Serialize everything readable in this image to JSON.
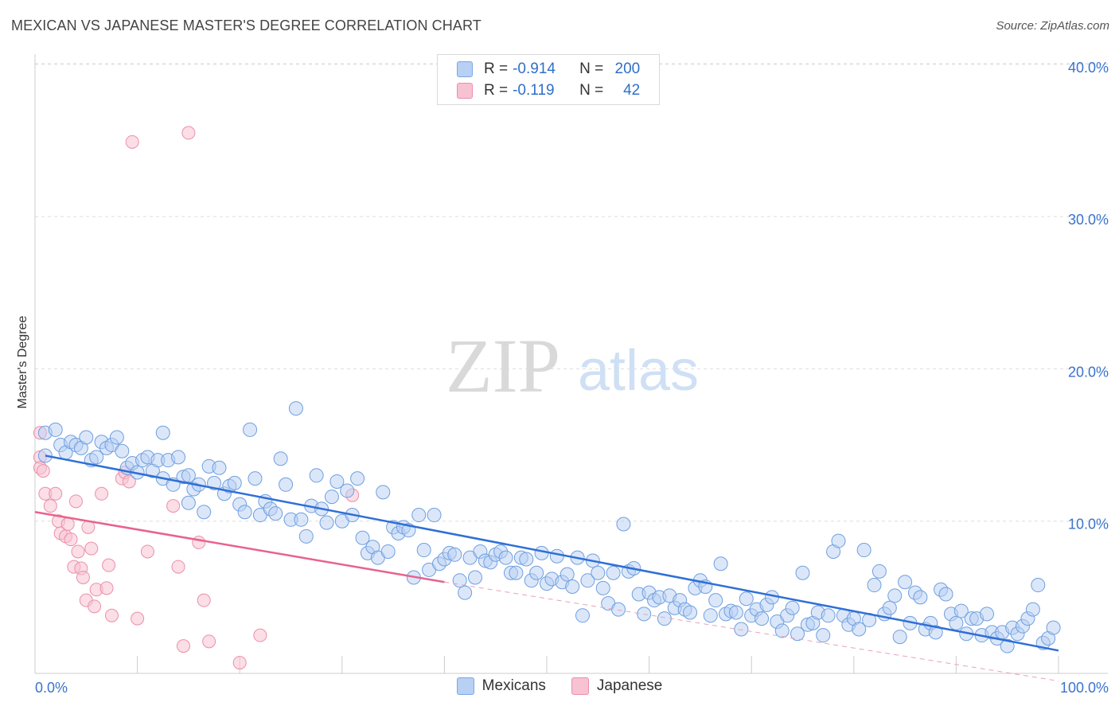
{
  "title": "MEXICAN VS JAPANESE MASTER'S DEGREE CORRELATION CHART",
  "source": "Source: ZipAtlas.com",
  "watermark": {
    "zip": "ZIP",
    "atlas": "atlas"
  },
  "legend": [
    {
      "r_label": "R =",
      "r_value": "-0.914",
      "n_label": "N =",
      "n_value": "200",
      "fill": "#b7d0f3",
      "stroke": "#7aa7e6"
    },
    {
      "r_label": "R =",
      "r_value": "-0.119",
      "n_label": "N =",
      "n_value": "42",
      "fill": "#f7c2d2",
      "stroke": "#eb8fab"
    }
  ],
  "bottom_legend": [
    {
      "label": "Mexicans",
      "fill": "#b7d0f3",
      "stroke": "#7aa7e6"
    },
    {
      "label": "Japanese",
      "fill": "#f7c2d2",
      "stroke": "#eb8fab"
    }
  ],
  "chart_data": {
    "type": "scatter",
    "title": "MEXICAN VS JAPANESE MASTER'S DEGREE CORRELATION CHART",
    "xlabel": "",
    "ylabel": "Master's Degree",
    "xlim": [
      0,
      100
    ],
    "ylim": [
      0,
      42
    ],
    "x_tick_labels": [
      "0.0%",
      "100.0%"
    ],
    "y_ticks": [
      10,
      20,
      30,
      40
    ],
    "y_tick_labels": [
      "10.0%",
      "20.0%",
      "30.0%",
      "40.0%"
    ],
    "grid": true,
    "legend_position": "top-center",
    "colors": {
      "mexicans": "#2f6fd6",
      "japanese": "#e8628e",
      "axis_text": "#3a74cc"
    },
    "series": [
      {
        "name": "Mexicans",
        "r": -0.914,
        "n": 200,
        "trend": {
          "x0": 1,
          "y0": 14.3,
          "x1": 100,
          "y1": 1.5
        },
        "points": [
          [
            1,
            14.3
          ],
          [
            1,
            15.8
          ],
          [
            2,
            16.0
          ],
          [
            2.5,
            15.0
          ],
          [
            3,
            14.5
          ],
          [
            3.5,
            15.2
          ],
          [
            4,
            15.0
          ],
          [
            4.5,
            14.8
          ],
          [
            5,
            15.5
          ],
          [
            5.5,
            14.0
          ],
          [
            6,
            14.2
          ],
          [
            6.5,
            15.2
          ],
          [
            7,
            14.8
          ],
          [
            7.5,
            15.0
          ],
          [
            8,
            15.5
          ],
          [
            8.5,
            14.6
          ],
          [
            9,
            13.5
          ],
          [
            9.5,
            13.8
          ],
          [
            10,
            13.2
          ],
          [
            10.5,
            14.0
          ],
          [
            11,
            14.2
          ],
          [
            11.5,
            13.3
          ],
          [
            12,
            14.0
          ],
          [
            12.5,
            12.8
          ],
          [
            12.5,
            15.8
          ],
          [
            13,
            14.0
          ],
          [
            13.5,
            12.4
          ],
          [
            14,
            14.2
          ],
          [
            14.5,
            12.9
          ],
          [
            15,
            11.2
          ],
          [
            15,
            13.0
          ],
          [
            15.5,
            12.1
          ],
          [
            16,
            12.4
          ],
          [
            16.5,
            10.6
          ],
          [
            17,
            13.6
          ],
          [
            17.5,
            12.5
          ],
          [
            18,
            13.5
          ],
          [
            18.5,
            11.8
          ],
          [
            19,
            12.3
          ],
          [
            19.5,
            12.5
          ],
          [
            20,
            11.1
          ],
          [
            20.5,
            10.6
          ],
          [
            21,
            16.0
          ],
          [
            21.5,
            12.8
          ],
          [
            22,
            10.4
          ],
          [
            22.5,
            11.3
          ],
          [
            23,
            10.8
          ],
          [
            23.5,
            10.5
          ],
          [
            24,
            14.1
          ],
          [
            24.5,
            12.4
          ],
          [
            25,
            10.1
          ],
          [
            25.5,
            17.4
          ],
          [
            26,
            10.1
          ],
          [
            26.5,
            9.0
          ],
          [
            27,
            11.0
          ],
          [
            27.5,
            13.0
          ],
          [
            28,
            10.8
          ],
          [
            28.5,
            9.9
          ],
          [
            29,
            11.6
          ],
          [
            29.5,
            12.6
          ],
          [
            30,
            10.0
          ],
          [
            30.5,
            12.0
          ],
          [
            31,
            10.4
          ],
          [
            31.5,
            12.8
          ],
          [
            32,
            8.9
          ],
          [
            32.5,
            7.9
          ],
          [
            33,
            8.3
          ],
          [
            33.5,
            7.6
          ],
          [
            34,
            11.9
          ],
          [
            34.5,
            8.0
          ],
          [
            35,
            9.6
          ],
          [
            35.5,
            9.2
          ],
          [
            36,
            9.6
          ],
          [
            36.5,
            9.4
          ],
          [
            37,
            6.3
          ],
          [
            37.5,
            10.4
          ],
          [
            38,
            8.1
          ],
          [
            38.5,
            6.8
          ],
          [
            39,
            10.4
          ],
          [
            39.5,
            7.2
          ],
          [
            40,
            7.5
          ],
          [
            40.5,
            7.9
          ],
          [
            41,
            7.8
          ],
          [
            41.5,
            6.1
          ],
          [
            42,
            5.3
          ],
          [
            42.5,
            7.6
          ],
          [
            43,
            6.3
          ],
          [
            43.5,
            8.0
          ],
          [
            44,
            7.4
          ],
          [
            44.5,
            7.3
          ],
          [
            45,
            7.8
          ],
          [
            45.5,
            8.0
          ],
          [
            46,
            7.6
          ],
          [
            46.5,
            6.6
          ],
          [
            47,
            6.6
          ],
          [
            47.5,
            7.6
          ],
          [
            48,
            7.5
          ],
          [
            48.5,
            6.1
          ],
          [
            49,
            6.6
          ],
          [
            49.5,
            7.9
          ],
          [
            50,
            5.9
          ],
          [
            50.5,
            6.2
          ],
          [
            51,
            7.7
          ],
          [
            51.5,
            6.0
          ],
          [
            52,
            6.5
          ],
          [
            52.5,
            5.7
          ],
          [
            53,
            7.6
          ],
          [
            53.5,
            3.8
          ],
          [
            54,
            6.1
          ],
          [
            54.5,
            7.4
          ],
          [
            55,
            6.6
          ],
          [
            55.5,
            5.6
          ],
          [
            56,
            4.6
          ],
          [
            56.5,
            6.6
          ],
          [
            57,
            4.2
          ],
          [
            57.5,
            9.8
          ],
          [
            58,
            6.7
          ],
          [
            58.5,
            6.9
          ],
          [
            59,
            5.2
          ],
          [
            59.5,
            3.9
          ],
          [
            60,
            5.3
          ],
          [
            60.5,
            4.8
          ],
          [
            61,
            5.0
          ],
          [
            61.5,
            3.6
          ],
          [
            62,
            5.1
          ],
          [
            62.5,
            4.3
          ],
          [
            63,
            4.8
          ],
          [
            63.5,
            4.2
          ],
          [
            64,
            4.0
          ],
          [
            64.5,
            5.6
          ],
          [
            65,
            6.1
          ],
          [
            65.5,
            5.7
          ],
          [
            66,
            3.8
          ],
          [
            66.5,
            4.8
          ],
          [
            67,
            7.2
          ],
          [
            67.5,
            3.9
          ],
          [
            68,
            4.1
          ],
          [
            68.5,
            4.0
          ],
          [
            69,
            2.9
          ],
          [
            69.5,
            4.9
          ],
          [
            70,
            3.8
          ],
          [
            70.5,
            4.2
          ],
          [
            71,
            3.6
          ],
          [
            71.5,
            4.5
          ],
          [
            72,
            5.0
          ],
          [
            72.5,
            3.4
          ],
          [
            73,
            2.8
          ],
          [
            73.5,
            3.8
          ],
          [
            74,
            4.3
          ],
          [
            74.5,
            2.6
          ],
          [
            75,
            6.6
          ],
          [
            75.5,
            3.2
          ],
          [
            76,
            3.3
          ],
          [
            76.5,
            4.0
          ],
          [
            77,
            2.5
          ],
          [
            77.5,
            3.8
          ],
          [
            78,
            8.0
          ],
          [
            78.5,
            8.7
          ],
          [
            79,
            3.8
          ],
          [
            79.5,
            3.2
          ],
          [
            80,
            3.6
          ],
          [
            80.5,
            2.9
          ],
          [
            81,
            8.1
          ],
          [
            81.5,
            3.5
          ],
          [
            82,
            5.8
          ],
          [
            82.5,
            6.7
          ],
          [
            83,
            3.9
          ],
          [
            83.5,
            4.3
          ],
          [
            84,
            5.1
          ],
          [
            84.5,
            2.4
          ],
          [
            85,
            6.0
          ],
          [
            85.5,
            3.3
          ],
          [
            86,
            5.3
          ],
          [
            86.5,
            5.0
          ],
          [
            87,
            2.9
          ],
          [
            87.5,
            3.3
          ],
          [
            88,
            2.7
          ],
          [
            88.5,
            5.5
          ],
          [
            89,
            5.2
          ],
          [
            89.5,
            3.9
          ],
          [
            90,
            3.3
          ],
          [
            90.5,
            4.1
          ],
          [
            91,
            2.6
          ],
          [
            91.5,
            3.6
          ],
          [
            92,
            3.6
          ],
          [
            92.5,
            2.5
          ],
          [
            93,
            3.9
          ],
          [
            93.5,
            2.7
          ],
          [
            94,
            2.3
          ],
          [
            94.5,
            2.7
          ],
          [
            95,
            1.8
          ],
          [
            95.5,
            3.0
          ],
          [
            96,
            2.6
          ],
          [
            96.5,
            3.1
          ],
          [
            97,
            3.6
          ],
          [
            97.5,
            4.2
          ],
          [
            98,
            5.8
          ],
          [
            98.5,
            2.0
          ],
          [
            99,
            2.3
          ],
          [
            99.5,
            3.0
          ]
        ]
      },
      {
        "name": "Japanese",
        "r": -0.119,
        "n": 42,
        "trend": {
          "x0": 0,
          "y0": 10.6,
          "x1": 40,
          "y1": 6.0
        },
        "trend_dashed_to": {
          "x": 100,
          "y": -0.5
        },
        "points": [
          [
            0.5,
            15.8
          ],
          [
            0.5,
            14.2
          ],
          [
            0.5,
            13.5
          ],
          [
            0.8,
            13.3
          ],
          [
            1,
            11.8
          ],
          [
            1.5,
            11.0
          ],
          [
            2,
            11.8
          ],
          [
            2.3,
            10.0
          ],
          [
            2.5,
            9.2
          ],
          [
            3,
            9.0
          ],
          [
            3.2,
            9.8
          ],
          [
            3.5,
            8.8
          ],
          [
            3.8,
            7.0
          ],
          [
            4,
            11.3
          ],
          [
            4.2,
            8.0
          ],
          [
            4.5,
            6.9
          ],
          [
            4.7,
            6.3
          ],
          [
            5,
            4.8
          ],
          [
            5.2,
            9.6
          ],
          [
            5.5,
            8.2
          ],
          [
            5.8,
            4.4
          ],
          [
            6,
            5.5
          ],
          [
            6.5,
            11.8
          ],
          [
            7,
            5.6
          ],
          [
            7.2,
            7.1
          ],
          [
            7.5,
            3.8
          ],
          [
            8.5,
            12.8
          ],
          [
            8.8,
            13.2
          ],
          [
            9.2,
            12.6
          ],
          [
            9.5,
            34.9
          ],
          [
            10,
            3.6
          ],
          [
            11,
            8.0
          ],
          [
            13.5,
            11.0
          ],
          [
            14,
            7.0
          ],
          [
            14.5,
            1.8
          ],
          [
            15,
            35.5
          ],
          [
            16,
            8.6
          ],
          [
            16.5,
            4.8
          ],
          [
            17,
            2.1
          ],
          [
            20,
            0.7
          ],
          [
            22,
            2.5
          ],
          [
            31,
            11.7
          ]
        ]
      }
    ]
  }
}
